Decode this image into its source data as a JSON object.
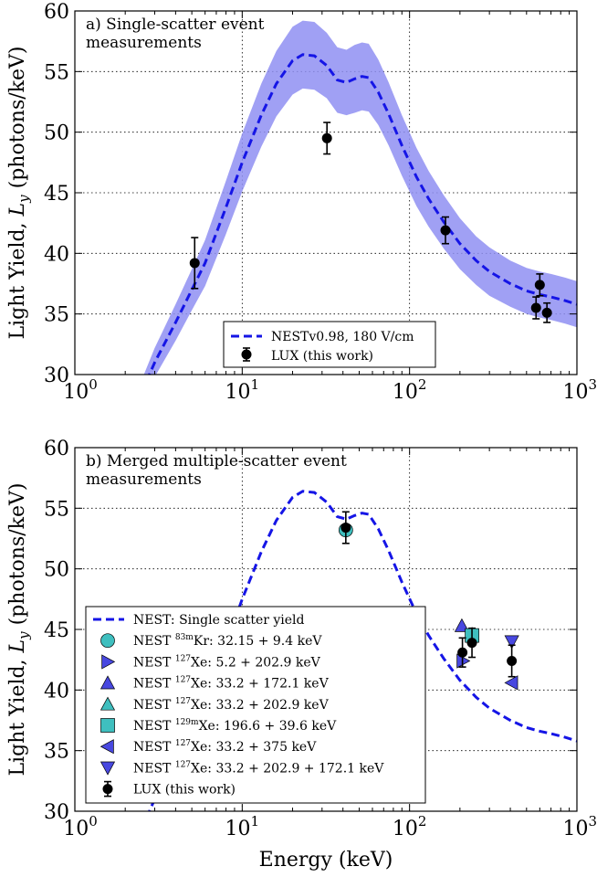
{
  "chart_data": [
    {
      "type": "line",
      "annotation": [
        "a) Single-scatter event",
        "measurements"
      ],
      "ylabel": "Light Yield, L_y (photons/keV)",
      "ylabel_parts": [
        "Light Yield, ",
        "L",
        "y",
        " (photons/keV)"
      ],
      "xlabel": "",
      "xscale": "log",
      "xlim": [
        1,
        1000
      ],
      "ylim": [
        30,
        60
      ],
      "grid": true,
      "legend_position": "bottom-center",
      "x_ticks": [
        {
          "base": "10",
          "exp": "0"
        },
        {
          "base": "10",
          "exp": "1"
        },
        {
          "base": "10",
          "exp": "2"
        },
        {
          "base": "10",
          "exp": "3"
        }
      ],
      "y_ticks": [
        "30",
        "35",
        "40",
        "45",
        "50",
        "55",
        "60"
      ],
      "series": [
        {
          "name": "NESTv0.98, 180 V/cm",
          "style": "dashed",
          "color": "#1515e6",
          "band_color": "#8f8ff2",
          "x": [
            2.5,
            3,
            4,
            5,
            6,
            8,
            10,
            13,
            16,
            20,
            23,
            27,
            32,
            37,
            42,
            47,
            52,
            57,
            65,
            75,
            90,
            110,
            130,
            160,
            200,
            250,
            300,
            400,
            500,
            600,
            700,
            850,
            1000
          ],
          "y": [
            28.5,
            31.0,
            34.3,
            37.0,
            39.2,
            43.8,
            47.5,
            51.4,
            54.0,
            55.9,
            56.4,
            56.3,
            55.5,
            54.3,
            54.1,
            54.4,
            54.6,
            54.5,
            53.3,
            51.5,
            48.9,
            46.3,
            44.5,
            42.6,
            40.8,
            39.4,
            38.5,
            37.5,
            36.9,
            36.6,
            36.4,
            36.1,
            35.8
          ],
          "band_half_width": [
            1.0,
            1.2,
            1.5,
            1.7,
            1.9,
            2.2,
            2.4,
            2.6,
            2.7,
            2.8,
            2.8,
            2.8,
            2.7,
            2.7,
            2.7,
            2.8,
            2.8,
            2.8,
            2.7,
            2.6,
            2.5,
            2.4,
            2.3,
            2.2,
            2.1,
            2.0,
            2.0,
            1.9,
            1.9,
            1.9,
            1.9,
            1.9,
            1.9
          ]
        },
        {
          "name": "LUX (this work)",
          "style": "points",
          "color": "#000000",
          "points": [
            {
              "x": 5.2,
              "y": 39.2,
              "err": 2.1
            },
            {
              "x": 32.1,
              "y": 49.5,
              "err": 1.3
            },
            {
              "x": 163.9,
              "y": 41.9,
              "err": 1.1
            },
            {
              "x": 570,
              "y": 35.5,
              "err": 0.9
            },
            {
              "x": 600,
              "y": 37.4,
              "err": 0.9
            },
            {
              "x": 662,
              "y": 35.1,
              "err": 0.8
            }
          ]
        }
      ]
    },
    {
      "type": "scatter",
      "annotation": [
        "b) Merged multiple-scatter event",
        "measurements"
      ],
      "ylabel": "Light Yield, L_y (photons/keV)",
      "ylabel_parts": [
        "Light Yield, ",
        "L",
        "y",
        " (photons/keV)"
      ],
      "xlabel": "Energy (keV)",
      "xscale": "log",
      "xlim": [
        1,
        1000
      ],
      "ylim": [
        30,
        60
      ],
      "grid": true,
      "legend_position": "lower-left",
      "x_ticks": [
        {
          "base": "10",
          "exp": "0"
        },
        {
          "base": "10",
          "exp": "1"
        },
        {
          "base": "10",
          "exp": "2"
        },
        {
          "base": "10",
          "exp": "3"
        }
      ],
      "y_ticks": [
        "30",
        "35",
        "40",
        "45",
        "50",
        "55",
        "60"
      ],
      "series": [
        {
          "name": "NEST: Single scatter yield",
          "style": "dashed",
          "color": "#1515e6",
          "x": [
            2.5,
            3,
            4,
            5,
            6,
            8,
            10,
            13,
            16,
            20,
            23,
            27,
            32,
            37,
            42,
            47,
            52,
            57,
            65,
            75,
            90,
            110,
            130,
            160,
            200,
            250,
            300,
            400,
            500,
            600,
            700,
            850,
            1000
          ],
          "y": [
            28.5,
            31.0,
            34.3,
            37.0,
            39.2,
            43.8,
            47.5,
            51.4,
            54.0,
            55.9,
            56.4,
            56.3,
            55.5,
            54.3,
            54.1,
            54.4,
            54.6,
            54.5,
            53.3,
            51.5,
            48.9,
            46.3,
            44.5,
            42.6,
            40.8,
            39.4,
            38.5,
            37.5,
            36.9,
            36.6,
            36.4,
            36.1,
            35.8
          ]
        },
        {
          "name_parts": [
            "NEST ",
            "83m",
            "Kr: 32.15 + 9.4 keV"
          ],
          "marker": "circle",
          "color": "#3fbfbf",
          "points": [
            {
              "x": 41.6,
              "y": 53.2
            }
          ]
        },
        {
          "name_parts": [
            "NEST ",
            "127",
            "Xe: 5.2 + 202.9 keV"
          ],
          "marker": "triangle-right",
          "color": "#4848e0",
          "points": [
            {
              "x": 208.1,
              "y": 42.4
            }
          ]
        },
        {
          "name_parts": [
            "NEST ",
            "127",
            "Xe: 33.2 + 172.1 keV"
          ],
          "marker": "triangle-up",
          "color": "#4848e0",
          "points": [
            {
              "x": 205.3,
              "y": 45.3
            }
          ]
        },
        {
          "name_parts": [
            "NEST ",
            "127",
            "Xe: 33.2 + 202.9 keV"
          ],
          "marker": "triangle-up",
          "color": "#3fbfbf",
          "points": [
            {
              "x": 236.1,
              "y": 44.6
            }
          ]
        },
        {
          "name_parts": [
            "NEST ",
            "129m",
            "Xe: 196.6 + 39.6 keV"
          ],
          "marker": "square",
          "color": "#3fbfbf",
          "points": [
            {
              "x": 236.2,
              "y": 44.5
            }
          ]
        },
        {
          "name_parts": [
            "NEST ",
            "127",
            "Xe: 33.2 + 375 keV"
          ],
          "marker": "triangle-left",
          "color": "#4848e0",
          "points": [
            {
              "x": 408.2,
              "y": 40.6
            }
          ]
        },
        {
          "name_parts": [
            "NEST ",
            "127",
            "Xe: 33.2 + 202.9 + 172.1 keV"
          ],
          "marker": "triangle-down",
          "color": "#4848e0",
          "points": [
            {
              "x": 408.2,
              "y": 44.0
            }
          ]
        },
        {
          "name": "LUX (this work)",
          "style": "points",
          "color": "#000000",
          "points": [
            {
              "x": 41.6,
              "y": 53.4,
              "err": 1.3
            },
            {
              "x": 207,
              "y": 43.1,
              "err": 1.2
            },
            {
              "x": 236,
              "y": 43.9,
              "err": 1.2
            },
            {
              "x": 408,
              "y": 42.4,
              "err": 1.3
            }
          ]
        }
      ]
    }
  ]
}
